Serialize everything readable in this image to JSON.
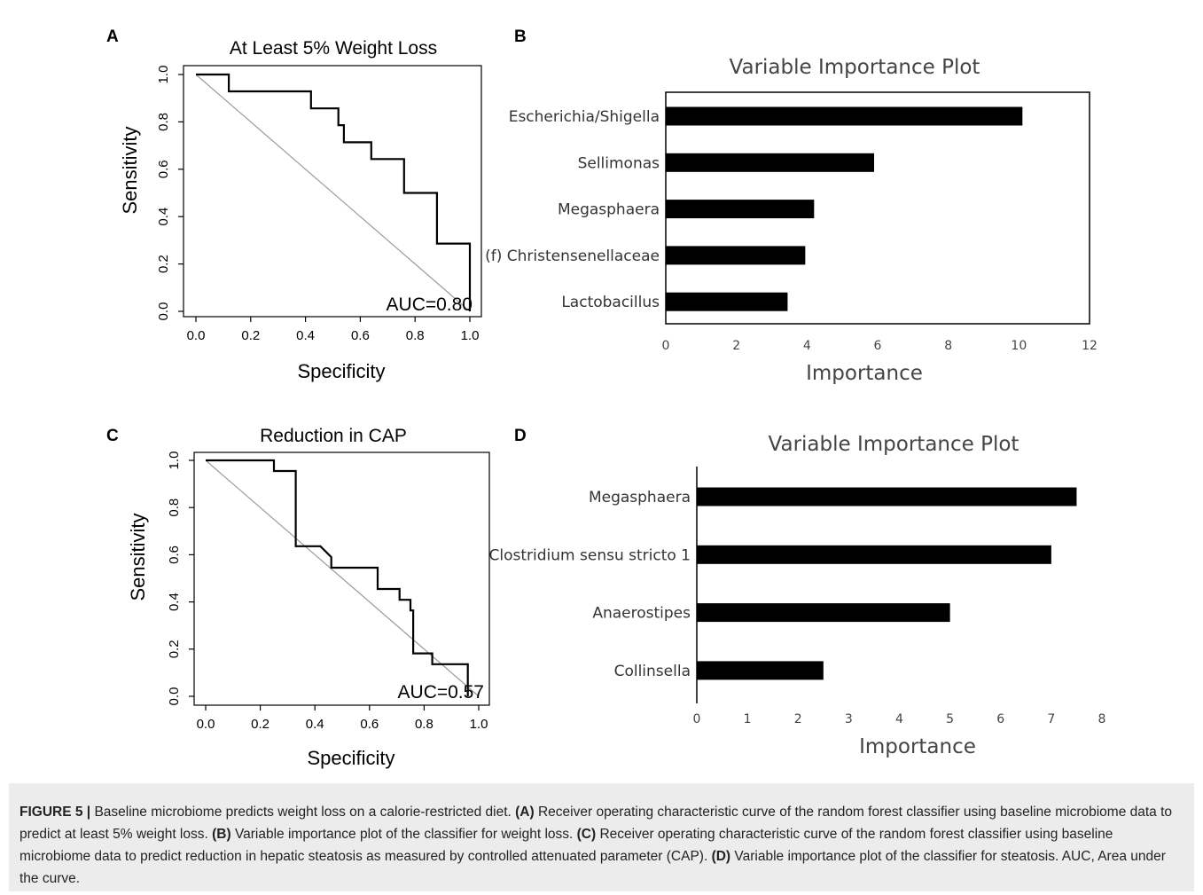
{
  "chart_data": [
    {
      "panel": "A",
      "type": "line",
      "title": "At Least 5% Weight Loss",
      "xlabel": "Specificity",
      "ylabel": "Sensitivity",
      "xlim": [
        1.0,
        0.0
      ],
      "ylim": [
        0.0,
        1.0
      ],
      "xticks": [
        "1.0",
        "0.8",
        "0.6",
        "0.4",
        "0.2",
        "0.0"
      ],
      "yticks": [
        "0.0",
        "0.2",
        "0.4",
        "0.6",
        "0.8",
        "1.0"
      ],
      "reference_line": true,
      "annotation": "AUC=0.80",
      "series": [
        {
          "x": [
            1.0,
            1.0,
            0.88,
            0.88,
            0.76,
            0.76,
            0.64,
            0.64,
            0.59,
            0.59,
            0.54,
            0.54,
            0.52,
            0.52,
            0.42,
            0.42,
            0.12,
            0.12,
            0.06,
            0.0
          ],
          "y": [
            0.0,
            0.286,
            0.286,
            0.5,
            0.5,
            0.643,
            0.643,
            0.714,
            0.714,
            0.714,
            0.714,
            0.786,
            0.786,
            0.857,
            0.857,
            0.929,
            0.929,
            1.0,
            1.0,
            1.0
          ]
        }
      ]
    },
    {
      "panel": "B",
      "type": "bar",
      "orientation": "horizontal",
      "title": "Variable Importance Plot",
      "xlabel": "Importance",
      "xlim": [
        0,
        12
      ],
      "xticks": [
        "0",
        "2",
        "4",
        "6",
        "8",
        "10",
        "12"
      ],
      "categories": [
        "Escherichia/Shigella",
        "Sellimonas",
        "Megasphaera",
        "(f) Christensenellaceae",
        "Lactobacillus"
      ],
      "values": [
        10.1,
        5.9,
        4.2,
        3.95,
        3.45
      ]
    },
    {
      "panel": "C",
      "type": "line",
      "title": "Reduction in CAP",
      "xlabel": "Specificity",
      "ylabel": "Sensitivity",
      "xlim": [
        1.0,
        0.0
      ],
      "ylim": [
        0.0,
        1.0
      ],
      "xticks": [
        "1.0",
        "0.8",
        "0.6",
        "0.4",
        "0.2",
        "0.0"
      ],
      "yticks": [
        "0.0",
        "0.2",
        "0.4",
        "0.6",
        "0.8",
        "1.0"
      ],
      "reference_line": true,
      "annotation": "AUC=0.57",
      "series": [
        {
          "x": [
            0.96,
            0.96,
            0.83,
            0.83,
            0.79,
            0.79,
            0.76,
            0.76,
            0.75,
            0.75,
            0.71,
            0.71,
            0.63,
            0.63,
            0.59,
            0.59,
            0.46,
            0.46,
            0.42,
            0.42,
            0.33,
            0.33,
            0.25,
            0.25,
            0.0
          ],
          "y": [
            0.0,
            0.136,
            0.136,
            0.182,
            0.182,
            0.182,
            0.182,
            0.364,
            0.364,
            0.409,
            0.409,
            0.455,
            0.455,
            0.545,
            0.545,
            0.545,
            0.545,
            0.59,
            0.636,
            0.636,
            0.636,
            0.955,
            0.955,
            1.0,
            1.0
          ]
        }
      ]
    },
    {
      "panel": "D",
      "type": "bar",
      "orientation": "horizontal",
      "title": "Variable Importance Plot",
      "xlabel": "Importance",
      "xlim": [
        0,
        8
      ],
      "xticks": [
        "0",
        "1",
        "2",
        "3",
        "4",
        "5",
        "6",
        "7",
        "8"
      ],
      "categories": [
        "Megasphaera",
        "Clostridium sensu stricto 1",
        "Anaerostipes",
        "Collinsella"
      ],
      "values": [
        7.5,
        7.0,
        5.0,
        2.5
      ]
    }
  ],
  "caption": {
    "lead": "FIGURE 5 |",
    "intro": " Baseline microbiome predicts weight loss on a calorie-restricted diet. ",
    "a_label": "(A)",
    "a_text": " Receiver operating characteristic curve of the random forest classifier using baseline microbiome data to predict at least 5% weight loss. ",
    "b_label": "(B)",
    "b_text": " Variable importance plot of the classifier for weight loss. ",
    "c_label": "(C)",
    "c_text": " Receiver operating characteristic curve of the random forest classifier using baseline microbiome data to predict reduction in hepatic steatosis as measured by controlled attenuated parameter (CAP). ",
    "d_label": "(D)",
    "d_text": " Variable importance plot of the classifier for steatosis. AUC, Area under the curve."
  }
}
